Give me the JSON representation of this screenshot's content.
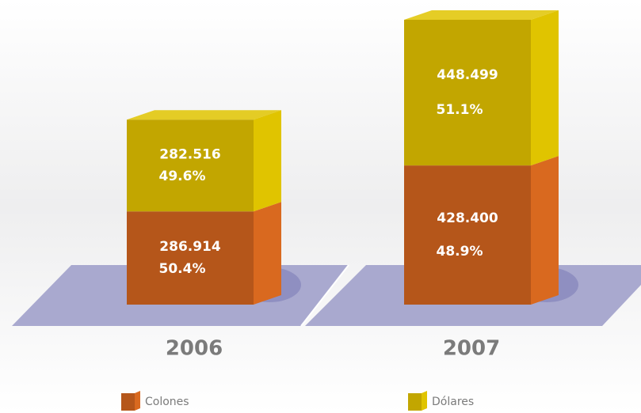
{
  "chart_data": {
    "type": "bar3d_stacked",
    "categories": [
      "2006",
      "2007"
    ],
    "series": [
      {
        "name": "Colones",
        "color": "#b5561a",
        "side_color": "#d9691f",
        "values": [
          286.914,
          428.4
        ],
        "value_labels": [
          "286.914",
          "428.400"
        ],
        "percent_labels": [
          "50.4%",
          "48.9%"
        ]
      },
      {
        "name": "Dólares",
        "color": "#c2a600",
        "side_color": "#e0c400",
        "values": [
          282.516,
          448.499
        ],
        "value_labels": [
          "282.516",
          "448.499"
        ],
        "percent_labels": [
          "49.6%",
          "51.1%"
        ]
      }
    ]
  }
}
